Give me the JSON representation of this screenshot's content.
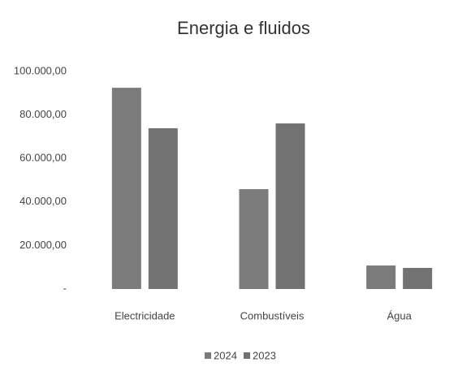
{
  "chart_data": {
    "type": "bar",
    "title": "Energia e fluidos",
    "categories": [
      "Electricidade",
      "Combustíveis",
      "Água"
    ],
    "series": [
      {
        "name": "2024",
        "color": "#7b7b7b",
        "values": [
          92500,
          45900,
          10800
        ]
      },
      {
        "name": "2023",
        "color": "#727272",
        "values": [
          73900,
          76100,
          9700
        ]
      }
    ],
    "ylim": [
      0,
      100000
    ],
    "yticks": [
      {
        "value": 0,
        "label": "-"
      },
      {
        "value": 20000,
        "label": "20.000,00"
      },
      {
        "value": 40000,
        "label": "40.000,00"
      },
      {
        "value": 60000,
        "label": "60.000,00"
      },
      {
        "value": 80000,
        "label": "80.000,00"
      },
      {
        "value": 100000,
        "label": "100.000,00"
      }
    ],
    "grid": false,
    "legend": "bottom"
  }
}
